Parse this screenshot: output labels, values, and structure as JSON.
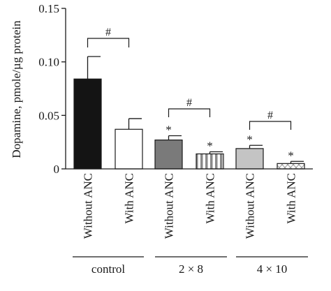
{
  "chart_data": {
    "type": "bar",
    "ylabel": "Dopamine, pmole/µg protein",
    "ylim": [
      0,
      0.15
    ],
    "yticks": [
      "0",
      "0.05",
      "0.10",
      "0.15"
    ],
    "yticks_values": [
      0,
      0.05,
      0.1,
      0.15
    ],
    "groups": [
      {
        "label": "control",
        "bars": [
          {
            "category": "Without ANC",
            "value": 0.084,
            "error": 0.021,
            "star": "",
            "fill": "solid-black"
          },
          {
            "category": "With ANC",
            "value": 0.037,
            "error": 0.01,
            "star": "",
            "fill": "white"
          }
        ],
        "bracket": "#"
      },
      {
        "label": "2 × 8",
        "bars": [
          {
            "category": "Without ANC",
            "value": 0.027,
            "error": 0.004,
            "star": "*",
            "fill": "dark-gray"
          },
          {
            "category": "With ANC",
            "value": 0.014,
            "error": 0.002,
            "star": "*",
            "fill": "vertical-stripes"
          }
        ],
        "bracket": "#"
      },
      {
        "label": "4 × 10",
        "bars": [
          {
            "category": "Without ANC",
            "value": 0.019,
            "error": 0.003,
            "star": "*",
            "fill": "light-gray"
          },
          {
            "category": "With ANC",
            "value": 0.005,
            "error": 0.002,
            "star": "*",
            "fill": "cross-hatch"
          }
        ],
        "bracket": "#"
      }
    ],
    "grid": false,
    "legend": "none"
  },
  "colors": {
    "ink": "#1a1a1a",
    "solid_black": "#141414",
    "dark_gray": "#7a7a7a",
    "light_gray": "#c4c4c4",
    "white": "#ffffff"
  }
}
